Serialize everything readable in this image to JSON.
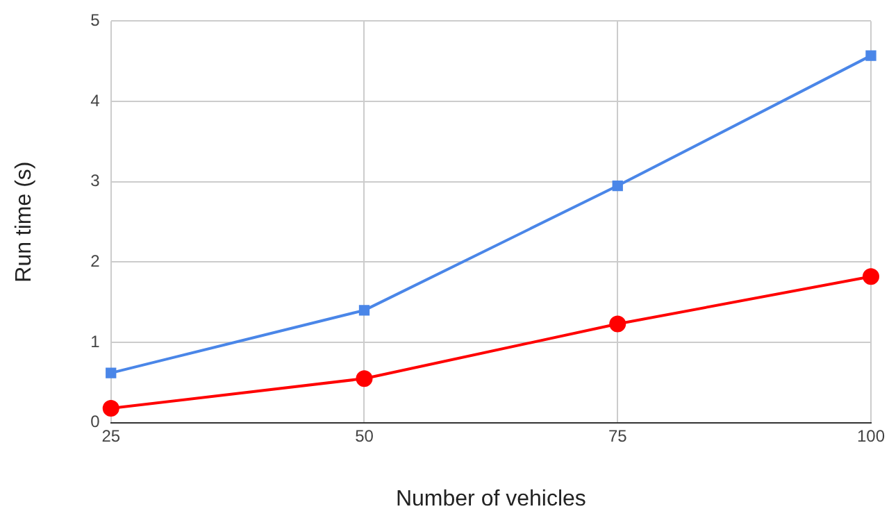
{
  "chart_data": {
    "type": "line",
    "xlabel": "Number of vehicles",
    "ylabel": "Run time (s)",
    "x": [
      25,
      50,
      75,
      100
    ],
    "series": [
      {
        "color": "#4a86e8",
        "marker": "square",
        "values": [
          0.62,
          1.4,
          2.95,
          4.57
        ]
      },
      {
        "color": "#ff0000",
        "marker": "circle",
        "values": [
          0.18,
          0.55,
          1.23,
          1.82
        ]
      }
    ],
    "xlim": [
      25,
      100
    ],
    "xticks": [
      25,
      50,
      75,
      100
    ],
    "ylim": [
      0,
      5
    ],
    "yticks": [
      0,
      1,
      2,
      3,
      4,
      5
    ],
    "grid": true,
    "legend": false
  }
}
